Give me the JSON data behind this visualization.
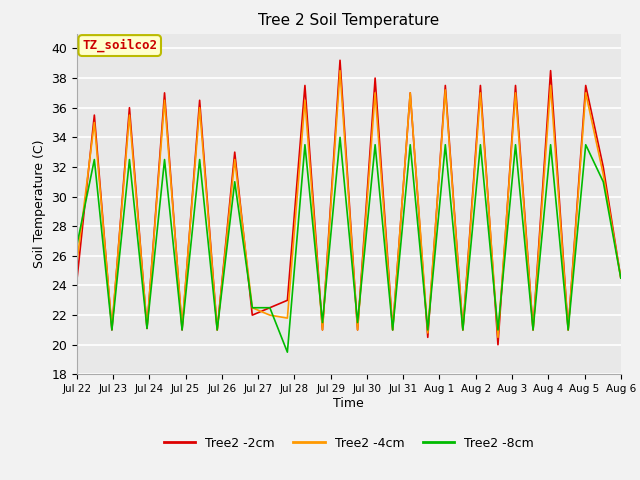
{
  "title": "Tree 2 Soil Temperature",
  "xlabel": "Time",
  "ylabel": "Soil Temperature (C)",
  "ylim": [
    18,
    41
  ],
  "yticks": [
    18,
    20,
    22,
    24,
    26,
    28,
    30,
    32,
    34,
    36,
    38,
    40
  ],
  "annotation_text": "TZ_soilco2",
  "annotation_color": "#cc0000",
  "annotation_bg": "#ffffcc",
  "annotation_border": "#bbbb00",
  "line_colors": {
    "2cm": "#dd0000",
    "4cm": "#ff9900",
    "8cm": "#00bb00"
  },
  "legend_labels": [
    "Tree2 -2cm",
    "Tree2 -4cm",
    "Tree2 -8cm"
  ],
  "tick_labels": [
    "Jul 22",
    "Jul 23",
    "Jul 24",
    "Jul 25",
    "Jul 26",
    "Jul 27",
    "Jul 28",
    "Jul 29",
    "Jul 30",
    "Jul 31",
    "Aug 1",
    "Aug 2",
    "Aug 3",
    "Aug 4",
    "Aug 5",
    "Aug 6"
  ],
  "fig_bg": "#f2f2f2",
  "plot_bg": "#e8e8e8",
  "grid_color": "#ffffff",
  "series_2cm": [
    24.3,
    35.5,
    21.0,
    36.0,
    21.1,
    37.0,
    21.0,
    36.5,
    21.0,
    33.0,
    22.0,
    22.5,
    23.0,
    37.5,
    21.0,
    39.2,
    21.0,
    38.0,
    21.0,
    37.0,
    20.5,
    37.5,
    21.0,
    37.5,
    20.0,
    37.5,
    21.0,
    38.5,
    21.0,
    37.5,
    32.0,
    24.5
  ],
  "series_4cm": [
    25.5,
    35.0,
    21.2,
    35.5,
    21.2,
    36.5,
    21.2,
    36.0,
    21.0,
    32.5,
    22.5,
    22.0,
    21.8,
    36.5,
    21.0,
    38.5,
    21.0,
    37.0,
    21.0,
    37.0,
    20.8,
    37.2,
    21.0,
    37.0,
    20.5,
    37.0,
    21.0,
    37.5,
    21.0,
    37.0,
    31.5,
    24.5
  ],
  "series_8cm": [
    26.7,
    32.5,
    21.0,
    32.5,
    21.1,
    32.5,
    21.0,
    32.5,
    21.0,
    31.0,
    22.5,
    22.5,
    19.5,
    33.5,
    21.5,
    34.0,
    21.5,
    33.5,
    21.0,
    33.5,
    21.0,
    33.5,
    21.0,
    33.5,
    21.0,
    33.5,
    21.0,
    33.5,
    21.0,
    33.5,
    31.0,
    24.5
  ]
}
